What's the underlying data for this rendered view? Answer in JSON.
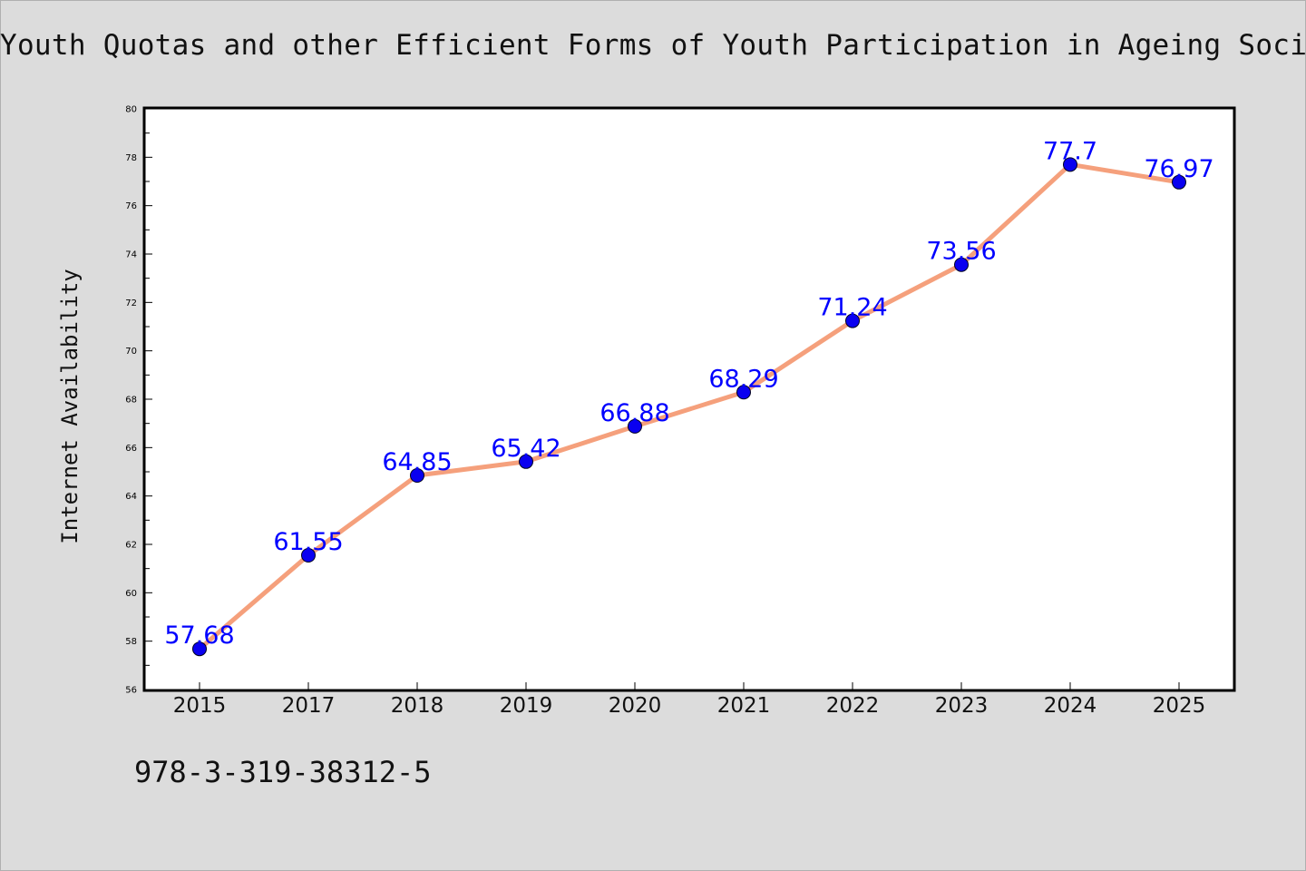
{
  "chart_data": {
    "type": "line",
    "title": "Youth Quotas and other Efficient Forms of Youth Participation in Ageing Societies",
    "xlabel": "",
    "ylabel": "Internet Availability",
    "categories": [
      "2015",
      "2017",
      "2018",
      "2019",
      "2020",
      "2021",
      "2022",
      "2023",
      "2024",
      "2025"
    ],
    "series": [
      {
        "values": [
          57.68,
          61.55,
          64.85,
          65.42,
          66.88,
          68.29,
          71.24,
          73.56,
          77.7,
          76.97
        ],
        "data_labels": [
          "57.68",
          "61.55",
          "64.85",
          "65.42",
          "66.88",
          "68.29",
          "71.24",
          "73.56",
          "77.7",
          "76.97"
        ]
      }
    ],
    "ylim": [
      56,
      80
    ],
    "yticks": [
      "56",
      "58",
      "60",
      "62",
      "64",
      "66",
      "68",
      "70",
      "72",
      "74",
      "76",
      "78",
      "80"
    ],
    "grid": false,
    "line_color": "#f5a07c",
    "marker_color": "#0a00f0",
    "label_color": "#0000ff"
  },
  "footer": {
    "code": "978-3-319-38312-5"
  }
}
